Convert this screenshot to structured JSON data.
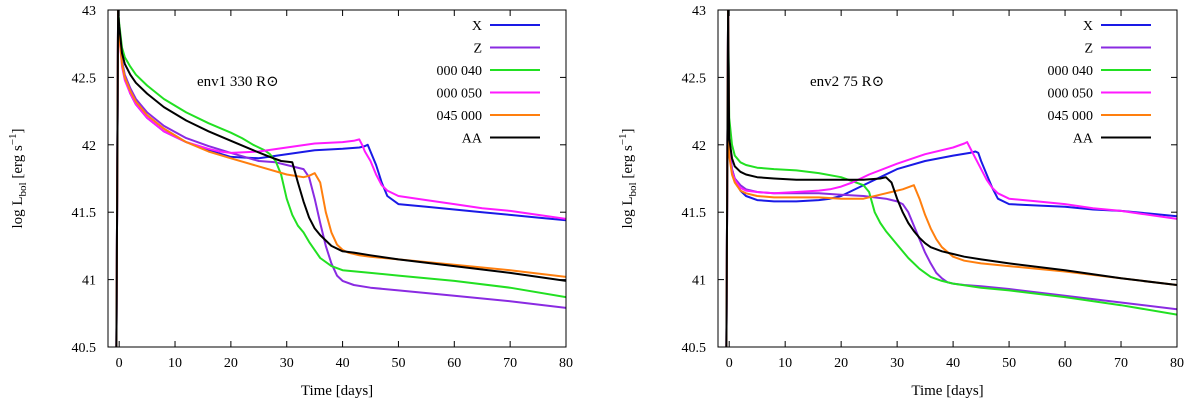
{
  "chart_data": [
    {
      "type": "line",
      "annotation": "env1 330 R⊙",
      "xlabel": "Time [days]",
      "ylabel_main": "log L",
      "ylabel_sub": "bol",
      "ylabel_unit": "[erg s",
      "ylabel_sup": "−1",
      "ylabel_end": "]",
      "xlim": [
        -2,
        80
      ],
      "ylim": [
        40.5,
        43
      ],
      "xticks": [
        0,
        10,
        20,
        30,
        40,
        50,
        60,
        70,
        80
      ],
      "yticks": [
        40.5,
        41,
        41.5,
        42,
        42.5,
        43
      ],
      "ytick_labels": [
        "40.5",
        "41",
        "41.5",
        "42",
        "42.5",
        "43"
      ],
      "legend_position": "top-right",
      "series": [
        {
          "name": "X",
          "color": "#1a1ae6",
          "x": [
            -0.5,
            -0.2,
            0,
            0.5,
            1,
            2,
            3,
            5,
            8,
            12,
            16,
            20,
            25,
            30,
            35,
            40,
            43,
            44,
            44.5,
            45,
            46,
            47,
            48,
            50,
            55,
            60,
            65,
            70,
            75,
            80
          ],
          "y": [
            40.5,
            43,
            42.85,
            42.62,
            42.5,
            42.38,
            42.3,
            42.2,
            42.1,
            42.02,
            41.96,
            41.91,
            41.9,
            41.93,
            41.96,
            41.97,
            41.98,
            41.99,
            42.0,
            41.95,
            41.85,
            41.72,
            41.62,
            41.56,
            41.54,
            41.52,
            41.5,
            41.48,
            41.46,
            41.44
          ]
        },
        {
          "name": "Z",
          "color": "#8a2be2",
          "x": [
            -0.5,
            -0.2,
            0,
            0.5,
            1,
            2,
            3,
            5,
            8,
            12,
            16,
            20,
            25,
            28,
            31,
            33,
            34,
            35,
            36,
            37,
            38,
            39,
            40,
            42,
            45,
            50,
            60,
            70,
            80
          ],
          "y": [
            40.5,
            43,
            42.85,
            42.62,
            42.52,
            42.42,
            42.34,
            42.24,
            42.14,
            42.05,
            41.99,
            41.94,
            41.88,
            41.87,
            41.84,
            41.82,
            41.76,
            41.6,
            41.42,
            41.25,
            41.12,
            41.03,
            40.99,
            40.96,
            40.94,
            40.92,
            40.88,
            40.84,
            40.79
          ]
        },
        {
          "name": "000 040",
          "color": "#22e022",
          "x": [
            -0.5,
            -0.2,
            0,
            0.5,
            1,
            2,
            3,
            5,
            8,
            12,
            16,
            20,
            22,
            24,
            26,
            27,
            28,
            29,
            30,
            31,
            32,
            33,
            34,
            36,
            38,
            40,
            45,
            50,
            60,
            70,
            80
          ],
          "y": [
            40.5,
            43,
            42.9,
            42.72,
            42.65,
            42.58,
            42.52,
            42.44,
            42.34,
            42.24,
            42.16,
            42.09,
            42.05,
            42.0,
            41.96,
            41.93,
            41.88,
            41.78,
            41.6,
            41.48,
            41.4,
            41.35,
            41.28,
            41.16,
            41.1,
            41.07,
            41.05,
            41.03,
            40.99,
            40.94,
            40.87
          ]
        },
        {
          "name": "000 050",
          "color": "#ff1aff",
          "x": [
            -0.5,
            -0.2,
            0,
            0.5,
            1,
            2,
            3,
            5,
            8,
            12,
            16,
            18,
            20,
            25,
            30,
            35,
            40,
            42,
            43,
            43.5,
            44,
            45,
            46,
            47,
            48,
            50,
            55,
            60,
            65,
            70,
            75,
            80
          ],
          "y": [
            40.5,
            43,
            42.82,
            42.58,
            42.48,
            42.38,
            42.3,
            42.2,
            42.1,
            42.02,
            41.97,
            41.95,
            41.94,
            41.95,
            41.98,
            42.01,
            42.02,
            42.03,
            42.04,
            42.0,
            41.95,
            41.88,
            41.78,
            41.7,
            41.66,
            41.62,
            41.59,
            41.56,
            41.53,
            41.51,
            41.48,
            41.45
          ]
        },
        {
          "name": "045 000",
          "color": "#ff7f0e",
          "x": [
            -0.5,
            -0.2,
            0,
            0.5,
            1,
            2,
            3,
            5,
            8,
            12,
            16,
            20,
            25,
            30,
            33,
            34,
            35,
            36,
            37,
            38,
            39,
            40,
            41,
            43,
            45,
            50,
            60,
            70,
            80
          ],
          "y": [
            40.5,
            43,
            42.82,
            42.6,
            42.5,
            42.4,
            42.32,
            42.22,
            42.12,
            42.02,
            41.95,
            41.9,
            41.84,
            41.78,
            41.76,
            41.77,
            41.79,
            41.72,
            41.5,
            41.35,
            41.26,
            41.22,
            41.2,
            41.18,
            41.17,
            41.15,
            41.11,
            41.07,
            41.02
          ]
        },
        {
          "name": "AA",
          "color": "#000000",
          "x": [
            -0.5,
            -0.2,
            0,
            0.5,
            1,
            2,
            3,
            5,
            8,
            12,
            16,
            20,
            24,
            27,
            29,
            31,
            32,
            33,
            34,
            35,
            36,
            37,
            38,
            40,
            42,
            45,
            50,
            60,
            70,
            80
          ],
          "y": [
            40.5,
            43,
            42.88,
            42.68,
            42.6,
            42.52,
            42.46,
            42.38,
            42.28,
            42.18,
            42.1,
            42.03,
            41.96,
            41.91,
            41.88,
            41.87,
            41.72,
            41.58,
            41.46,
            41.38,
            41.33,
            41.29,
            41.25,
            41.21,
            41.2,
            41.18,
            41.15,
            41.1,
            41.05,
            40.99
          ]
        }
      ]
    },
    {
      "type": "line",
      "annotation": "env2 75 R⊙",
      "xlabel": "Time [days]",
      "ylabel_main": "log L",
      "ylabel_sub": "bol",
      "ylabel_unit": "[erg s",
      "ylabel_sup": "−1",
      "ylabel_end": "]",
      "xlim": [
        -2,
        80
      ],
      "ylim": [
        40.5,
        43
      ],
      "xticks": [
        0,
        10,
        20,
        30,
        40,
        50,
        60,
        70,
        80
      ],
      "yticks": [
        40.5,
        41,
        41.5,
        42,
        42.5,
        43
      ],
      "ytick_labels": [
        "40.5",
        "41",
        "41.5",
        "42",
        "42.5",
        "43"
      ],
      "legend_position": "top-right",
      "series": [
        {
          "name": "X",
          "color": "#1a1ae6",
          "x": [
            -0.5,
            -0.2,
            0,
            0.5,
            1,
            2,
            3,
            5,
            8,
            12,
            16,
            18,
            20,
            22,
            25,
            30,
            35,
            40,
            43,
            44,
            44.5,
            45,
            46,
            47,
            48,
            50,
            55,
            60,
            65,
            70,
            75,
            80
          ],
          "y": [
            40.5,
            43,
            42.0,
            41.82,
            41.74,
            41.66,
            41.62,
            41.59,
            41.58,
            41.58,
            41.59,
            41.6,
            41.62,
            41.66,
            41.72,
            41.82,
            41.88,
            41.92,
            41.94,
            41.95,
            41.94,
            41.88,
            41.78,
            41.68,
            41.6,
            41.56,
            41.55,
            41.54,
            41.52,
            41.51,
            41.49,
            41.47
          ]
        },
        {
          "name": "Z",
          "color": "#8a2be2",
          "x": [
            -0.5,
            -0.2,
            0,
            0.5,
            1,
            2,
            3,
            5,
            8,
            12,
            16,
            20,
            24,
            28,
            30,
            31,
            32,
            33,
            34,
            35,
            36,
            37,
            38,
            39,
            40,
            42,
            45,
            50,
            60,
            70,
            80
          ],
          "y": [
            40.5,
            43,
            41.95,
            41.82,
            41.75,
            41.7,
            41.67,
            41.65,
            41.64,
            41.64,
            41.64,
            41.63,
            41.62,
            41.6,
            41.58,
            41.56,
            41.5,
            41.4,
            41.3,
            41.2,
            41.12,
            41.05,
            41.01,
            40.98,
            40.97,
            40.96,
            40.95,
            40.93,
            40.88,
            40.83,
            40.78
          ]
        },
        {
          "name": "000 040",
          "color": "#22e022",
          "x": [
            -0.5,
            -0.2,
            0,
            0.5,
            1,
            2,
            3,
            5,
            8,
            12,
            16,
            20,
            22,
            24,
            25,
            26,
            27,
            28,
            30,
            32,
            34,
            36,
            38,
            40,
            45,
            50,
            60,
            70,
            80
          ],
          "y": [
            40.5,
            43,
            42.2,
            42.0,
            41.92,
            41.87,
            41.85,
            41.83,
            41.82,
            41.81,
            41.79,
            41.76,
            41.73,
            41.7,
            41.65,
            41.5,
            41.42,
            41.36,
            41.26,
            41.16,
            41.08,
            41.02,
            40.99,
            40.97,
            40.94,
            40.92,
            40.87,
            40.81,
            40.74
          ]
        },
        {
          "name": "000 050",
          "color": "#ff1aff",
          "x": [
            -0.5,
            -0.2,
            0,
            0.5,
            1,
            2,
            3,
            5,
            8,
            12,
            16,
            18,
            20,
            22,
            25,
            30,
            35,
            40,
            42,
            42.5,
            43,
            44,
            45,
            46,
            47,
            48,
            50,
            55,
            60,
            65,
            70,
            75,
            80
          ],
          "y": [
            40.5,
            43,
            41.95,
            41.8,
            41.74,
            41.68,
            41.66,
            41.65,
            41.64,
            41.65,
            41.66,
            41.67,
            41.69,
            41.72,
            41.78,
            41.86,
            41.93,
            41.98,
            42.01,
            42.02,
            41.98,
            41.9,
            41.82,
            41.74,
            41.68,
            41.64,
            41.6,
            41.58,
            41.56,
            41.53,
            41.51,
            41.48,
            41.45
          ]
        },
        {
          "name": "045 000",
          "color": "#ff7f0e",
          "x": [
            -0.5,
            -0.2,
            0,
            0.5,
            1,
            2,
            3,
            5,
            8,
            12,
            16,
            20,
            24,
            28,
            31,
            33,
            34,
            35,
            36,
            37,
            38,
            40,
            42,
            45,
            50,
            60,
            70,
            80
          ],
          "y": [
            40.5,
            43,
            41.92,
            41.78,
            41.72,
            41.66,
            41.64,
            41.62,
            41.61,
            41.61,
            41.61,
            41.6,
            41.6,
            41.64,
            41.67,
            41.7,
            41.6,
            41.48,
            41.38,
            41.3,
            41.24,
            41.17,
            41.14,
            41.12,
            41.1,
            41.06,
            41.01,
            40.96
          ]
        },
        {
          "name": "AA",
          "color": "#000000",
          "x": [
            -0.5,
            -0.2,
            0,
            0.5,
            1,
            2,
            3,
            5,
            8,
            12,
            16,
            20,
            24,
            27,
            28,
            29,
            30,
            31,
            32,
            33,
            34,
            35,
            36,
            38,
            40,
            42,
            45,
            50,
            60,
            70,
            80
          ],
          "y": [
            40.5,
            43,
            42.05,
            41.9,
            41.84,
            41.8,
            41.78,
            41.76,
            41.75,
            41.74,
            41.74,
            41.74,
            41.74,
            41.75,
            41.76,
            41.72,
            41.6,
            41.5,
            41.42,
            41.36,
            41.31,
            41.27,
            41.24,
            41.21,
            41.19,
            41.17,
            41.15,
            41.12,
            41.07,
            41.01,
            40.96
          ]
        }
      ]
    }
  ]
}
